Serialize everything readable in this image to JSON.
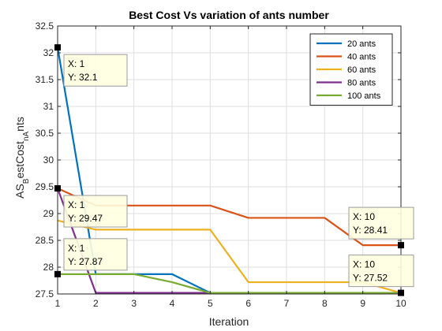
{
  "chart_data": {
    "type": "line",
    "title": "Best Cost Vs variation of ants number",
    "xlabel": "Iteration",
    "ylabel": "AS_BestCost_nAnts",
    "xlim": [
      1,
      10
    ],
    "ylim": [
      27.5,
      32.5
    ],
    "xticks": [
      1,
      2,
      3,
      4,
      5,
      6,
      7,
      8,
      9,
      10
    ],
    "yticks": [
      27.5,
      28,
      28.5,
      29,
      29.5,
      30,
      30.5,
      31,
      31.5,
      32,
      32.5
    ],
    "grid": true,
    "legend_position": "top-right",
    "x": [
      1,
      2,
      3,
      4,
      5,
      6,
      7,
      8,
      9,
      10
    ],
    "series": [
      {
        "name": "20 ants",
        "color": "#0072BD",
        "values": [
          32.1,
          27.87,
          27.87,
          27.87,
          27.52,
          27.52,
          27.52,
          27.52,
          27.52,
          27.52
        ]
      },
      {
        "name": "40 ants",
        "color": "#D95319",
        "values": [
          29.47,
          29.15,
          29.15,
          29.15,
          29.15,
          28.92,
          28.92,
          28.92,
          28.41,
          28.41
        ]
      },
      {
        "name": "60 ants",
        "color": "#EDB120",
        "values": [
          28.87,
          28.7,
          28.7,
          28.7,
          28.7,
          27.72,
          27.72,
          27.72,
          27.72,
          27.52
        ]
      },
      {
        "name": "80 ants",
        "color": "#7E2F8E",
        "values": [
          29.47,
          27.52,
          27.52,
          27.52,
          27.52,
          27.52,
          27.52,
          27.52,
          27.52,
          27.52
        ]
      },
      {
        "name": "100 ants",
        "color": "#77AC30",
        "values": [
          27.87,
          27.87,
          27.87,
          27.72,
          27.52,
          27.52,
          27.52,
          27.52,
          27.52,
          27.52
        ]
      }
    ],
    "datatips": [
      {
        "x": 1,
        "y": 32.1,
        "x_text": "X: 1",
        "y_text": "Y: 32.1"
      },
      {
        "x": 1,
        "y": 29.47,
        "x_text": "X: 1",
        "y_text": "Y: 29.47"
      },
      {
        "x": 1,
        "y": 27.87,
        "x_text": "X: 1",
        "y_text": "Y: 27.87"
      },
      {
        "x": 10,
        "y": 28.41,
        "x_text": "X: 10",
        "y_text": "Y: 28.41"
      },
      {
        "x": 10,
        "y": 27.52,
        "x_text": "X: 10",
        "y_text": "Y: 27.52"
      }
    ]
  }
}
